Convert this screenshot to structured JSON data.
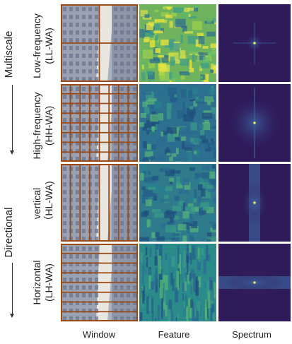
{
  "groups": [
    {
      "label": "Multiscale"
    },
    {
      "label": "Directional"
    }
  ],
  "rows": [
    {
      "name_line1": "Low-frequency",
      "name_line2": "(LL-WA)",
      "grid_cols": 2,
      "grid_rows": 2
    },
    {
      "name_line1": "High-frequency",
      "name_line2": "(HH-WA)",
      "grid_cols": 8,
      "grid_rows": 8
    },
    {
      "name_line1": "vertical",
      "name_line2": "（HL-WA)",
      "grid_cols": 8,
      "grid_rows": 1
    },
    {
      "name_line1": "Horizontal",
      "name_line2": "(LH-WA)",
      "grid_cols": 1,
      "grid_rows": 8
    }
  ],
  "columns": [
    {
      "label": "Window"
    },
    {
      "label": "Feature"
    },
    {
      "label": "Spectrum"
    }
  ],
  "colors": {
    "window_grid": "#9b4a17",
    "spectrum_bg": "#2f1a5a",
    "feature_bg": "#2a7d8e"
  }
}
